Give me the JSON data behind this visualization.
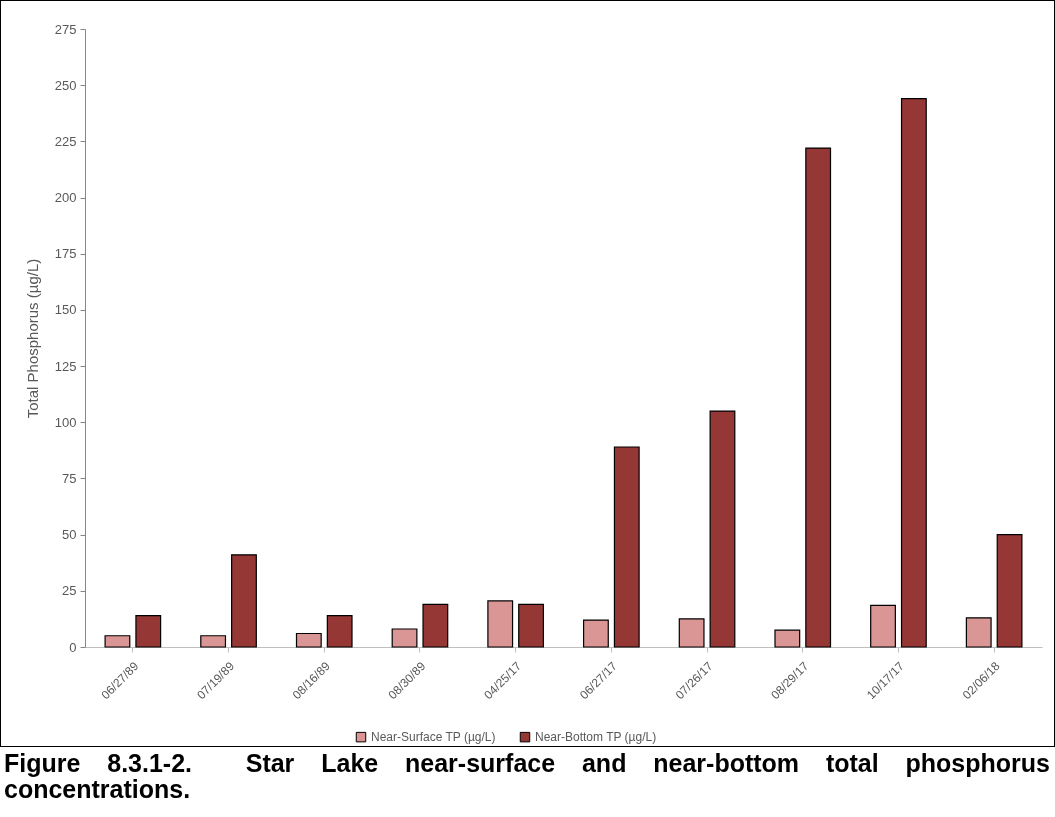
{
  "chart_data": {
    "type": "bar",
    "title": "Figure 8.3.1-2.  Star Lake near-surface and near-bottom total phosphorus concentrations.",
    "ylabel": "Total Phosphorus (µg/L)",
    "categories": [
      "06/27/89",
      "07/19/89",
      "08/16/89",
      "08/30/89",
      "04/25/17",
      "06/27/17",
      "07/26/17",
      "08/29/17",
      "10/17/17",
      "02/06/18"
    ],
    "series": [
      {
        "name": "Near-Surface TP (µg/L)",
        "color": "#d99694",
        "values": [
          5,
          5,
          6,
          8,
          20.5,
          12,
          12.5,
          7.5,
          18.5,
          13
        ]
      },
      {
        "name": "Near-Bottom TP (µg/L)",
        "color": "#953735",
        "values": [
          14,
          41,
          14,
          19,
          19,
          89,
          105,
          222,
          244,
          50
        ]
      }
    ],
    "ylim": [
      0,
      275
    ],
    "yticks": [
      0,
      25,
      50,
      75,
      100,
      125,
      150,
      175,
      200,
      225,
      250,
      275
    ],
    "legend": "bottom"
  }
}
